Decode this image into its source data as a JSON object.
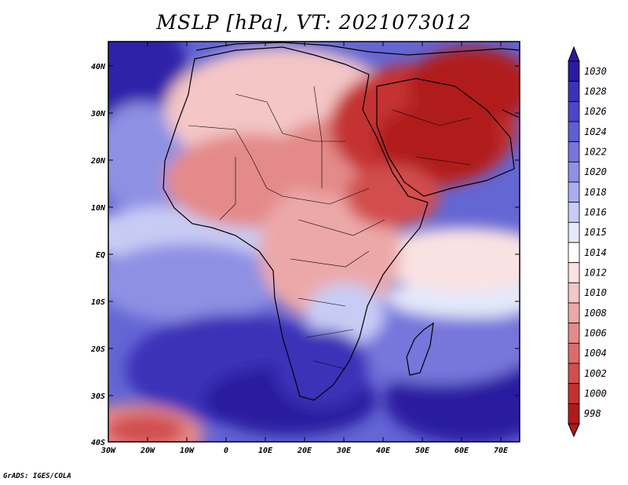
{
  "title": "MSLP [hPa], VT: 2021073012",
  "credit": "GrADS: IGES/COLA",
  "axes": {
    "lon_ticks": [
      "30W",
      "20W",
      "10W",
      "0",
      "10E",
      "20E",
      "30E",
      "40E",
      "50E",
      "60E",
      "70E"
    ],
    "lat_ticks": [
      "40N",
      "30N",
      "20N",
      "10N",
      "EQ",
      "10S",
      "20S",
      "30S",
      "40S"
    ]
  },
  "colorbar": {
    "levels": [
      "1030",
      "1028",
      "1026",
      "1024",
      "1022",
      "1020",
      "1018",
      "1016",
      "1015",
      "1014",
      "1012",
      "1010",
      "1008",
      "1006",
      "1004",
      "1002",
      "1000",
      "998"
    ],
    "colors": [
      "#2a1aa0",
      "#3a32b8",
      "#4a48c8",
      "#5e60d2",
      "#7676dc",
      "#8e90e4",
      "#aaaeec",
      "#c8ccf4",
      "#e4e8fa",
      "#ffffff",
      "#fbe2e2",
      "#f4c6c6",
      "#eca8a8",
      "#e48a8a",
      "#dc6c6c",
      "#d24e4e",
      "#c43030",
      "#b01a1a"
    ]
  }
}
